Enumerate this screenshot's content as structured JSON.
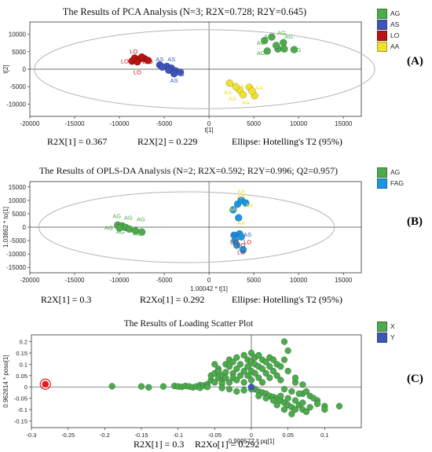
{
  "colors": {
    "AG": "#4daa4d",
    "AS": "#3e55b9",
    "LO": "#b81414",
    "AA": "#f0e030",
    "FAG": "#1a97e0",
    "X": "#4daa4d",
    "Y": "#3e55b9",
    "outlier": "#e01e1e",
    "axis": "#222222",
    "ellipse": "#b4b4b4"
  },
  "panels": [
    {
      "key": "A",
      "tag": "(A)",
      "title": "The Results of PCA Analysis (N=3; R2X=0.728; R2Y=0.645)",
      "xlabel": "t[1]",
      "ylabel": "t[2]",
      "stats": [
        "R2X[1] = 0.367",
        "R2X[2] = 0.229",
        "Ellipse: Hotelling's T2 (95%)"
      ],
      "legend": [
        "AG",
        "AS",
        "LO",
        "AA"
      ]
    },
    {
      "key": "B",
      "tag": "(B)",
      "title": "The Results of OPLS-DA Analysis (N=2; R2X=0.592; R2Y=0.996; Q2=0.957)",
      "xlabel": "1.00042 * t[1]",
      "ylabel": "1.03862 * to[1]",
      "stats": [
        "R2X[1] = 0.3",
        "R2Xo[1] = 0.292",
        "Ellipse: Hotelling's T2 (95%)"
      ],
      "legend": [
        "AG",
        "FAG"
      ]
    },
    {
      "key": "C",
      "tag": "(C)",
      "title": "The Results of Loading Scatter Plot",
      "xlabel": "0.999577 * pq[1]",
      "ylabel": "0.962814 * poso[1]",
      "stats": [
        "R2X[1] = 0.3",
        "R2Xo[1] = 0.292"
      ],
      "legend": [
        "X",
        "Y"
      ]
    }
  ],
  "chart_data": [
    {
      "type": "scatter",
      "title": "The Results of PCA Analysis (N=3; R2X=0.728; R2Y=0.645)",
      "xlabel": "t[1]",
      "ylabel": "t[2]",
      "xlim": [
        -20000,
        17000
      ],
      "ylim": [
        -13500,
        13500
      ],
      "xticks": [
        -20000,
        -15000,
        -10000,
        -5000,
        0,
        5000,
        10000,
        15000
      ],
      "yticks": [
        -10000,
        -5000,
        0,
        5000,
        10000
      ],
      "grid": false,
      "legend_position": "right",
      "ellipse": {
        "cx": -500,
        "cy": 0,
        "rx": 19000,
        "ry": 11300
      },
      "series": [
        {
          "name": "AG",
          "points": [
            [
              6200,
              8200
            ],
            [
              7000,
              9200
            ],
            [
              8300,
              7600
            ],
            [
              7700,
              5800
            ],
            [
              8400,
              5800
            ],
            [
              9500,
              5600
            ],
            [
              6500,
              5200
            ],
            [
              7500,
              6800
            ]
          ],
          "labels": [
            [
              6600,
              9500,
              "AG"
            ],
            [
              8100,
              10500,
              "AG"
            ],
            [
              8900,
              9500,
              "AG"
            ],
            [
              5800,
              7700,
              "AG"
            ],
            [
              9800,
              5600,
              "AG"
            ],
            [
              5800,
              4700,
              "AG"
            ]
          ]
        },
        {
          "name": "AS",
          "points": [
            [
              -5500,
              1200
            ],
            [
              -4700,
              800
            ],
            [
              -4200,
              300
            ],
            [
              -3700,
              -500
            ],
            [
              -3200,
              -900
            ],
            [
              -4500,
              -300
            ],
            [
              -5200,
              600
            ],
            [
              -3900,
              -1300
            ]
          ],
          "labels": [
            [
              -5500,
              2900,
              "AS"
            ],
            [
              -4200,
              2900,
              "AS"
            ],
            [
              -3200,
              -1300,
              "AS"
            ],
            [
              -3900,
              -3100,
              "AS"
            ]
          ]
        },
        {
          "name": "LO",
          "points": [
            [
              -8600,
              2300
            ],
            [
              -8300,
              3200
            ],
            [
              -7800,
              2800
            ],
            [
              -7200,
              3000
            ],
            [
              -6800,
              2500
            ],
            [
              -8000,
              2100
            ],
            [
              -7500,
              3500
            ]
          ],
          "labels": [
            [
              -8400,
              5200,
              "LO"
            ],
            [
              -9400,
              2400,
              "LO"
            ],
            [
              -6700,
              2300,
              "LO"
            ],
            [
              -8000,
              -800,
              "LO"
            ],
            [
              -7000,
              2300,
              "LO"
            ]
          ]
        },
        {
          "name": "AA",
          "points": [
            [
              2300,
              -4000
            ],
            [
              3400,
              -6000
            ],
            [
              4500,
              -5200
            ],
            [
              5100,
              -7600
            ],
            [
              3800,
              -7300
            ],
            [
              4800,
              -6300
            ],
            [
              3000,
              -5000
            ]
          ],
          "labels": [
            [
              2600,
              -8300,
              "AA"
            ],
            [
              3500,
              -4800,
              "AA"
            ],
            [
              5600,
              -5200,
              "AA"
            ],
            [
              4100,
              -9400,
              "AA"
            ],
            [
              2100,
              -6500,
              "AA"
            ]
          ]
        }
      ]
    },
    {
      "type": "scatter",
      "title": "The Results of OPLS-DA Analysis (N=2; R2X=0.592; R2Y=0.996; Q2=0.957)",
      "xlabel": "1.00042 * t[1]",
      "ylabel": "1.03862 * to[1]",
      "xlim": [
        -20000,
        17000
      ],
      "ylim": [
        -17000,
        17000
      ],
      "xticks": [
        -20000,
        -15000,
        -10000,
        -5000,
        0,
        5000,
        10000,
        15000
      ],
      "yticks": [
        -15000,
        -10000,
        -5000,
        0,
        5000,
        10000,
        15000
      ],
      "grid": false,
      "legend_position": "right",
      "ellipse": {
        "cx": -2500,
        "cy": 0,
        "rx": 16500,
        "ry": 13200
      },
      "series": [
        {
          "name": "AG",
          "points": [
            [
              -10200,
              800
            ],
            [
              -9700,
              500
            ],
            [
              -9300,
              -100
            ],
            [
              -8900,
              -700
            ],
            [
              -8200,
              -1400
            ],
            [
              -7500,
              -1800
            ],
            [
              -10000,
              -300
            ]
          ],
          "labels": [
            [
              -10300,
              4200,
              "AG"
            ],
            [
              -9000,
              3700,
              "AG"
            ],
            [
              -7600,
              3100,
              "AG"
            ],
            [
              -11200,
              -100,
              "AG"
            ],
            [
              -9900,
              -1600,
              "AG"
            ],
            [
              -8000,
              -2300,
              "AG"
            ]
          ]
        },
        {
          "name": "FAG",
          "points": [
            [
              2700,
              6500
            ],
            [
              3200,
              8600
            ],
            [
              3600,
              10100
            ],
            [
              4100,
              9000
            ],
            [
              2800,
              -3000
            ],
            [
              3400,
              -2500
            ],
            [
              3100,
              -6700
            ],
            [
              3800,
              -8400
            ],
            [
              2900,
              -5000
            ],
            [
              3600,
              -3600
            ],
            [
              3300,
              3500
            ]
          ],
          "labels": [
            [
              3600,
              13500,
              "AA"
            ],
            [
              3600,
              11600,
              "AA"
            ],
            [
              4500,
              8200,
              "AA"
            ],
            [
              2600,
              6900,
              "AA"
            ],
            [
              3600,
              1700,
              "AA"
            ],
            [
              2900,
              -2600,
              "AS"
            ],
            [
              4300,
              -2600,
              "AS"
            ],
            [
              2800,
              -5400,
              "LO"
            ],
            [
              4300,
              -5400,
              "LO"
            ],
            [
              3600,
              -6600,
              "LO"
            ],
            [
              3600,
              -9200,
              "LO"
            ]
          ]
        }
      ]
    },
    {
      "type": "scatter",
      "title": "The Results of Loading Scatter Plot",
      "xlabel": "0.999577 * pq[1]",
      "ylabel": "0.962814 * poso[1]",
      "xlim": [
        -0.3,
        0.15
      ],
      "ylim": [
        -0.18,
        0.23
      ],
      "xticks": [
        -0.3,
        -0.25,
        -0.2,
        -0.15,
        -0.1,
        -0.05,
        0,
        0.05,
        0.1
      ],
      "yticks": [
        -0.15,
        -0.1,
        -0.05,
        0,
        0.05,
        0.1,
        0.15,
        0.2
      ],
      "grid": false,
      "legend_position": "right",
      "series": [
        {
          "name": "X",
          "points": [
            [
              -0.281,
              0.012
            ],
            [
              -0.19,
              0.003
            ],
            [
              -0.15,
              0.002
            ],
            [
              -0.14,
              -0.002
            ],
            [
              -0.12,
              0.002
            ],
            [
              -0.105,
              0.004
            ],
            [
              -0.1,
              0.002
            ],
            [
              -0.095,
              0
            ],
            [
              -0.09,
              0.004
            ],
            [
              -0.085,
              0.002
            ],
            [
              -0.08,
              -0.002
            ],
            [
              -0.075,
              0.002
            ],
            [
              -0.07,
              0.008
            ],
            [
              -0.07,
              -0.004
            ],
            [
              -0.065,
              0.006
            ],
            [
              -0.06,
              0.012
            ],
            [
              -0.06,
              0
            ],
            [
              -0.055,
              0.03
            ],
            [
              -0.055,
              0.05
            ],
            [
              -0.05,
              0.02
            ],
            [
              -0.05,
              0.06
            ],
            [
              -0.05,
              0.1
            ],
            [
              -0.045,
              0.04
            ],
            [
              -0.045,
              0.08
            ],
            [
              -0.045,
              0.07
            ],
            [
              -0.04,
              0.03
            ],
            [
              -0.04,
              0.015
            ],
            [
              -0.04,
              0.05
            ],
            [
              -0.035,
              0.1
            ],
            [
              -0.035,
              0.065
            ],
            [
              -0.035,
              0.04
            ],
            [
              -0.03,
              0.12
            ],
            [
              -0.03,
              0.09
            ],
            [
              -0.03,
              0.02
            ],
            [
              -0.025,
              0.06
            ],
            [
              -0.025,
              0.04
            ],
            [
              -0.025,
              0.11
            ],
            [
              -0.02,
              0.08
            ],
            [
              -0.02,
              0.03
            ],
            [
              -0.02,
              0.13
            ],
            [
              -0.015,
              0.1
            ],
            [
              -0.015,
              0.05
            ],
            [
              -0.01,
              0.14
            ],
            [
              -0.01,
              0.07
            ],
            [
              -0.01,
              0.02
            ],
            [
              -0.005,
              0.12
            ],
            [
              -0.005,
              0.09
            ],
            [
              -0.005,
              0.05
            ],
            [
              0,
              0.15
            ],
            [
              0,
              0.11
            ],
            [
              0,
              0.07
            ],
            [
              0,
              0.03
            ],
            [
              0.005,
              0.13
            ],
            [
              0.005,
              0.1
            ],
            [
              0.005,
              0.06
            ],
            [
              0.01,
              0.14
            ],
            [
              0.01,
              0.09
            ],
            [
              0.01,
              0.04
            ],
            [
              0.015,
              0.12
            ],
            [
              0.015,
              0.08
            ],
            [
              0.015,
              0.02
            ],
            [
              0.02,
              0.11
            ],
            [
              0.02,
              0.06
            ],
            [
              0.025,
              0.13
            ],
            [
              0.025,
              0.09
            ],
            [
              0.025,
              0.04
            ],
            [
              0.03,
              0.12
            ],
            [
              0.03,
              0.07
            ],
            [
              0.035,
              0.1
            ],
            [
              0.035,
              0.05
            ],
            [
              0.04,
              0.09
            ],
            [
              0.04,
              0.03
            ],
            [
              0.045,
              0.2
            ],
            [
              0.045,
              0.12
            ],
            [
              0.05,
              0.16
            ],
            [
              0.05,
              0.07
            ],
            [
              0.005,
              -0.01
            ],
            [
              0.01,
              -0.02
            ],
            [
              0.015,
              -0.025
            ],
            [
              0.02,
              -0.03
            ],
            [
              0.025,
              -0.04
            ],
            [
              0.03,
              -0.045
            ],
            [
              0.035,
              -0.05
            ],
            [
              0.04,
              -0.06
            ],
            [
              0.045,
              -0.07
            ],
            [
              0.05,
              -0.08
            ],
            [
              0.055,
              -0.09
            ],
            [
              0.03,
              -0.06
            ],
            [
              0.04,
              -0.04
            ],
            [
              0.05,
              -0.05
            ],
            [
              0.06,
              -0.06
            ],
            [
              0.065,
              -0.08
            ],
            [
              0.07,
              -0.1
            ],
            [
              0.07,
              -0.07
            ],
            [
              0.075,
              -0.11
            ],
            [
              0.08,
              -0.09
            ],
            [
              0.02,
              -0.05
            ],
            [
              0.01,
              -0.04
            ],
            [
              0.035,
              -0.08
            ],
            [
              0.045,
              -0.1
            ],
            [
              0.055,
              -0.12
            ],
            [
              0.06,
              -0.1
            ],
            [
              -0.04,
              -0.005
            ],
            [
              -0.03,
              -0.01
            ],
            [
              -0.02,
              -0.02
            ],
            [
              -0.01,
              -0.015
            ],
            [
              0,
              -0.01
            ],
            [
              0.06,
              0.02
            ],
            [
              0.06,
              0.04
            ],
            [
              0.07,
              0.01
            ],
            [
              0.07,
              -0.03
            ],
            [
              0.08,
              -0.04
            ],
            [
              0.09,
              -0.06
            ],
            [
              0.1,
              -0.085
            ],
            [
              0.12,
              -0.085
            ],
            [
              0.1,
              -0.1
            ],
            [
              0.09,
              -0.075
            ],
            [
              0.085,
              -0.05
            ],
            [
              0.075,
              -0.02
            ],
            [
              0.065,
              -0.03
            ],
            [
              0.055,
              -0.02
            ],
            [
              0.045,
              -0.01
            ]
          ]
        },
        {
          "name": "Y",
          "points": [
            [
              0.0,
              0.0
            ]
          ]
        }
      ],
      "highlight": {
        "x": -0.281,
        "y": 0.012
      }
    }
  ]
}
